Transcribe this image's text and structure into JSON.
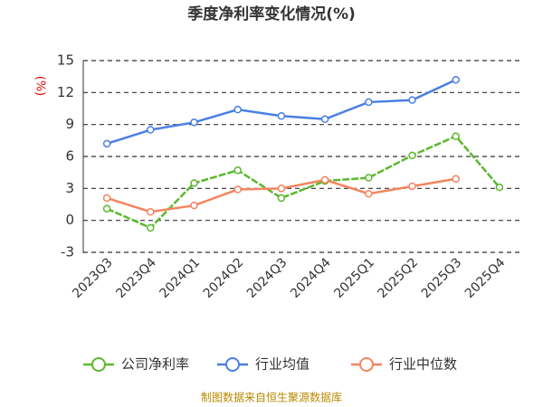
{
  "chart_data": {
    "type": "line",
    "title": "季度净利率变化情况(%)",
    "y_label": "(%)",
    "categories": [
      "2023Q3",
      "2023Q4",
      "2024Q1",
      "2024Q2",
      "2024Q3",
      "2024Q4",
      "2025Q1",
      "2025Q2",
      "2025Q3",
      "2025Q4"
    ],
    "series": [
      {
        "name": "公司净利率",
        "color": "#5cb82e",
        "values": [
          1.1,
          -0.7,
          3.5,
          4.7,
          2.1,
          3.7,
          4.0,
          6.1,
          7.9,
          3.1
        ]
      },
      {
        "name": "行业均值",
        "color": "#4a7fe3",
        "values": [
          7.2,
          8.5,
          9.2,
          10.4,
          9.8,
          9.5,
          11.1,
          11.3,
          13.2,
          null
        ]
      },
      {
        "name": "行业中位数",
        "color": "#f4845f",
        "values": [
          2.1,
          0.8,
          1.4,
          2.9,
          3.0,
          3.8,
          2.5,
          3.2,
          3.9,
          null
        ]
      }
    ],
    "ylim": [
      -3,
      15
    ],
    "yticks": [
      -3,
      0,
      3,
      6,
      9,
      12,
      15
    ],
    "grid": true,
    "source": "制图数据来自恒生聚源数据库"
  }
}
